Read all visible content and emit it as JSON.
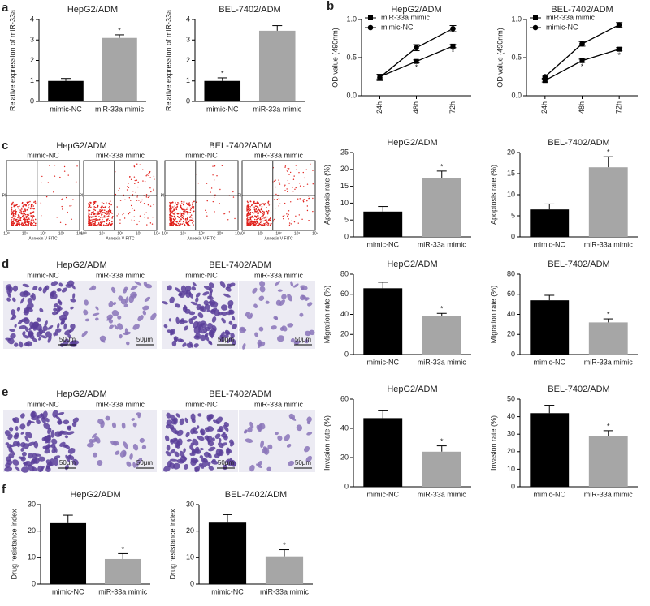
{
  "panel_letters": [
    "a",
    "b",
    "c",
    "d",
    "e",
    "f"
  ],
  "images": {
    "c": {
      "groups": [
        "HepG2/ADM",
        "BEL-7402/ADM"
      ],
      "conditions": [
        "mimic-NC",
        "miR-33a mimic"
      ],
      "x_label": "Annexin V FITC",
      "y_label": "PI",
      "ticks": [
        "10⁰",
        "10¹",
        "10²",
        "10³",
        "10⁴"
      ]
    },
    "d": {
      "groups": [
        "HepG2/ADM",
        "BEL-7402/ADM"
      ],
      "conditions": [
        "mimic-NC",
        "miR-33a mimic"
      ],
      "scale_bar": "50μm"
    },
    "e": {
      "groups": [
        "HepG2/ADM",
        "BEL-7402/ADM"
      ],
      "conditions": [
        "mimic-NC",
        "miR-33a mimic"
      ],
      "scale_bar": "50μm"
    }
  },
  "chart_data": [
    {
      "type": "bar",
      "title": "HepG2/ADM",
      "y_label": "Relative expression of miR-33a",
      "categories": [
        "mimic-NC",
        "miR-33a mimic"
      ],
      "values": [
        1.0,
        3.1
      ],
      "errors": [
        0.12,
        0.15
      ],
      "significance": [
        null,
        "*"
      ],
      "colors": [
        "#000000",
        "#a6a6a6"
      ],
      "ylim": [
        0,
        4
      ],
      "yticks": [
        0,
        1,
        2,
        3,
        4
      ]
    },
    {
      "type": "bar",
      "title": "BEL-7402/ADM",
      "y_label": "Relative expression of miR-33a",
      "categories": [
        "mimic-NC",
        "miR-33a mimic"
      ],
      "values": [
        1.0,
        3.45
      ],
      "errors": [
        0.15,
        0.25
      ],
      "significance": [
        "*",
        null
      ],
      "colors": [
        "#000000",
        "#a6a6a6"
      ],
      "ylim": [
        0,
        4
      ],
      "yticks": [
        0,
        1,
        2,
        3,
        4
      ]
    },
    {
      "type": "line",
      "title": "HepG2/ADM",
      "y_label": "OD value (490nm)",
      "categories": [
        "24h",
        "48h",
        "72h"
      ],
      "ylim": [
        0,
        1
      ],
      "yticks": [
        {
          "value": 0,
          "label": "0.0"
        },
        0.5,
        {
          "value": 1,
          "label": "1.0"
        }
      ],
      "series": [
        {
          "name": "miR-33a mimic",
          "color": "#000000",
          "marker": "square",
          "values": [
            0.25,
            0.45,
            0.65
          ],
          "errors": [
            0.03,
            0.02,
            0.02
          ],
          "significance": [
            null,
            "*",
            "*"
          ]
        },
        {
          "name": "mimic-NC",
          "color": "#000000",
          "marker": "circle",
          "values": [
            0.24,
            0.63,
            0.88
          ],
          "errors": [
            0.04,
            0.04,
            0.04
          ]
        }
      ]
    },
    {
      "type": "line",
      "title": "BEL-7402/ADM",
      "y_label": "OD value (490nm)",
      "categories": [
        "24h",
        "48h",
        "72h"
      ],
      "ylim": [
        0,
        1
      ],
      "yticks": [
        {
          "value": 0,
          "label": "0.0"
        },
        0.5,
        {
          "value": 1,
          "label": "1.0"
        }
      ],
      "series": [
        {
          "name": "miR-33a mimic",
          "color": "#000000",
          "marker": "square",
          "values": [
            0.2,
            0.46,
            0.61
          ],
          "errors": [
            0.02,
            0.02,
            0.02
          ],
          "significance": [
            null,
            "*",
            "*"
          ]
        },
        {
          "name": "mimic-NC",
          "color": "#000000",
          "marker": "circle",
          "values": [
            0.25,
            0.68,
            0.93
          ],
          "errors": [
            0.02,
            0.03,
            0.03
          ]
        }
      ]
    },
    {
      "type": "bar",
      "title": "HepG2/ADM",
      "y_label": "Apoptosis rate (%)",
      "categories": [
        "mimic-NC",
        "miR-33a mimic"
      ],
      "values": [
        7.5,
        17.5
      ],
      "errors": [
        1.5,
        2
      ],
      "significance": [
        null,
        "*"
      ],
      "colors": [
        "#000000",
        "#a6a6a6"
      ],
      "ylim": [
        0,
        25
      ],
      "yticks": [
        0,
        5,
        10,
        15,
        20,
        25
      ]
    },
    {
      "type": "bar",
      "title": "BEL-7402/ADM",
      "y_label": "Apoptosis rate (%)",
      "categories": [
        "mimic-NC",
        "miR-33a mimic"
      ],
      "values": [
        6.5,
        16.5
      ],
      "errors": [
        1.3,
        2.5
      ],
      "significance": [
        null,
        "*"
      ],
      "colors": [
        "#000000",
        "#a6a6a6"
      ],
      "ylim": [
        0,
        20
      ],
      "yticks": [
        0,
        5,
        10,
        15,
        20
      ]
    },
    {
      "type": "bar",
      "title": "HepG2/ADM",
      "y_label": "Migration rate (%)",
      "categories": [
        "mimic-NC",
        "miR-33a mimic"
      ],
      "values": [
        66,
        38
      ],
      "errors": [
        6,
        3
      ],
      "significance": [
        null,
        "*"
      ],
      "colors": [
        "#000000",
        "#a6a6a6"
      ],
      "ylim": [
        0,
        80
      ],
      "yticks": [
        0,
        20,
        40,
        60,
        80
      ]
    },
    {
      "type": "bar",
      "title": "BEL-7402/ADM",
      "y_label": "Migration rate (%)",
      "categories": [
        "mimic-NC",
        "miR-33a mimic"
      ],
      "values": [
        54,
        32
      ],
      "errors": [
        5,
        3.5
      ],
      "significance": [
        null,
        "*"
      ],
      "colors": [
        "#000000",
        "#a6a6a6"
      ],
      "ylim": [
        0,
        80
      ],
      "yticks": [
        0,
        20,
        40,
        60,
        80
      ]
    },
    {
      "type": "bar",
      "title": "HepG2/ADM",
      "y_label": "Invasion rate (%)",
      "categories": [
        "mimic-NC",
        "miR-33a mimic"
      ],
      "values": [
        47,
        24
      ],
      "errors": [
        5,
        4
      ],
      "significance": [
        null,
        "*"
      ],
      "colors": [
        "#000000",
        "#a6a6a6"
      ],
      "ylim": [
        0,
        60
      ],
      "yticks": [
        0,
        20,
        40,
        60
      ]
    },
    {
      "type": "bar",
      "title": "BEL-7402/ADM",
      "y_label": "Invasion rate (%)",
      "categories": [
        "mimic-NC",
        "miR-33a mimic"
      ],
      "values": [
        42,
        29
      ],
      "errors": [
        4.5,
        3
      ],
      "significance": [
        null,
        "*"
      ],
      "colors": [
        "#000000",
        "#a6a6a6"
      ],
      "ylim": [
        0,
        50
      ],
      "yticks": [
        0,
        10,
        20,
        30,
        40,
        50
      ]
    },
    {
      "type": "bar",
      "title": "HepG2/ADM",
      "y_label": "Drug resistance index",
      "categories": [
        "mimic-NC",
        "miR-33a mimic"
      ],
      "values": [
        23,
        9.5
      ],
      "errors": [
        3,
        2
      ],
      "significance": [
        null,
        "*"
      ],
      "colors": [
        "#000000",
        "#a6a6a6"
      ],
      "ylim": [
        0,
        30
      ],
      "yticks": [
        0,
        10,
        20,
        30
      ]
    },
    {
      "type": "bar",
      "title": "BEL-7402/ADM",
      "y_label": "Drug resistance index",
      "categories": [
        "mimic-NC",
        "miR-33a mimic"
      ],
      "values": [
        23.2,
        10.5
      ],
      "errors": [
        3,
        2.5
      ],
      "significance": [
        null,
        "*"
      ],
      "colors": [
        "#000000",
        "#a6a6a6"
      ],
      "ylim": [
        0,
        30
      ],
      "yticks": [
        0,
        10,
        20,
        30
      ]
    }
  ]
}
